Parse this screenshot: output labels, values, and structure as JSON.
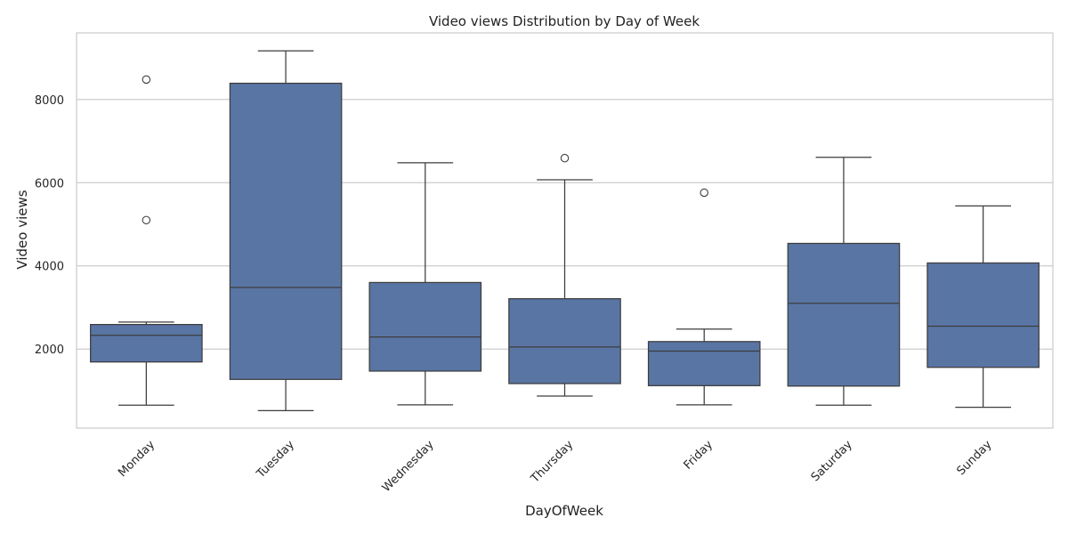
{
  "chart_data": {
    "type": "box",
    "title": "Video views Distribution by Day of Week",
    "xlabel": "DayOfWeek",
    "ylabel": "Video views",
    "ylim": [
      100,
      9600
    ],
    "yticks": [
      2000,
      4000,
      6000,
      8000
    ],
    "ytick_labels": [
      "2000",
      "4000",
      "6000",
      "8000"
    ],
    "grid": true,
    "legend": "none",
    "box_color": "#5975a4",
    "line_color": "#3d3d3d",
    "categories": [
      "Monday",
      "Tuesday",
      "Wednesday",
      "Thursday",
      "Friday",
      "Saturday",
      "Sunday"
    ],
    "boxes": [
      {
        "category": "Monday",
        "whisker_low": 650,
        "q1": 1690,
        "median": 2330,
        "q3": 2590,
        "whisker_high": 2650,
        "outliers": [
          5100,
          8480
        ]
      },
      {
        "category": "Tuesday",
        "whisker_low": 520,
        "q1": 1270,
        "median": 3480,
        "q3": 8390,
        "whisker_high": 9170,
        "outliers": []
      },
      {
        "category": "Wednesday",
        "whisker_low": 660,
        "q1": 1470,
        "median": 2290,
        "q3": 3600,
        "whisker_high": 6480,
        "outliers": []
      },
      {
        "category": "Thursday",
        "whisker_low": 870,
        "q1": 1170,
        "median": 2050,
        "q3": 3210,
        "whisker_high": 6070,
        "outliers": [
          6590
        ]
      },
      {
        "category": "Friday",
        "whisker_low": 660,
        "q1": 1120,
        "median": 1950,
        "q3": 2180,
        "whisker_high": 2480,
        "outliers": [
          5760
        ]
      },
      {
        "category": "Saturday",
        "whisker_low": 650,
        "q1": 1110,
        "median": 3100,
        "q3": 4540,
        "whisker_high": 6610,
        "outliers": []
      },
      {
        "category": "Sunday",
        "whisker_low": 600,
        "q1": 1560,
        "median": 2550,
        "q3": 4070,
        "whisker_high": 5440,
        "outliers": []
      }
    ]
  }
}
